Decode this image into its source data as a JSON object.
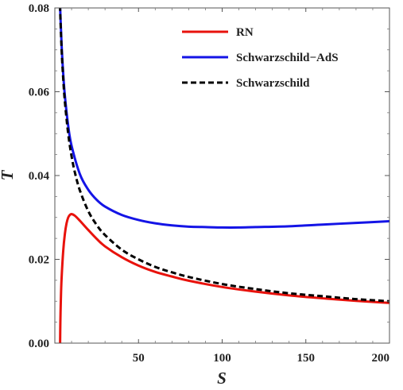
{
  "chart_data": {
    "type": "line",
    "xlabel": "S",
    "ylabel": "T",
    "xlim": [
      0,
      200
    ],
    "ylim": [
      0,
      0.08
    ],
    "x_ticks": [
      50,
      100,
      150,
      200
    ],
    "x_tick_labels": [
      "50",
      "100",
      "150",
      "200"
    ],
    "y_ticks": [
      0,
      0.02,
      0.04,
      0.06,
      0.08
    ],
    "y_tick_labels": [
      "0.00",
      "0.02",
      "0.04",
      "0.06",
      "0.08"
    ],
    "grid": false,
    "legend_position": "top-right",
    "series": [
      {
        "name": "RN",
        "color": "#e8120c",
        "style": "solid",
        "x": [
          3.14,
          3.3,
          3.6,
          4,
          5,
          6,
          7,
          8,
          9,
          10,
          12,
          15,
          20,
          25,
          30,
          40,
          50,
          60,
          70,
          80,
          100,
          120,
          140,
          160,
          180,
          200
        ],
        "y": [
          0.0,
          0.0051,
          0.0105,
          0.0152,
          0.022,
          0.0261,
          0.0286,
          0.03,
          0.0306,
          0.0308,
          0.0304,
          0.0292,
          0.027,
          0.0249,
          0.0231,
          0.0205,
          0.0185,
          0.017,
          0.0159,
          0.0149,
          0.0134,
          0.0123,
          0.0114,
          0.0107,
          0.0101,
          0.0096
        ]
      },
      {
        "name": "Schwarzschild−AdS",
        "color": "#1414e6",
        "style": "solid",
        "x": [
          2.2,
          2.5,
          3,
          4,
          5,
          6,
          8,
          10,
          15,
          20,
          25,
          30,
          40,
          50,
          60,
          70,
          80,
          90,
          100,
          110,
          120,
          140,
          160,
          180,
          200
        ],
        "y": [
          0.0954,
          0.0896,
          0.082,
          0.0715,
          0.0643,
          0.059,
          0.0518,
          0.0471,
          0.0403,
          0.0366,
          0.0342,
          0.0326,
          0.0306,
          0.0294,
          0.0286,
          0.0281,
          0.0278,
          0.0277,
          0.0276,
          0.0276,
          0.0277,
          0.0279,
          0.0283,
          0.0287,
          0.0291
        ]
      },
      {
        "name": "Schwarzschild",
        "color": "#000000",
        "style": "dashed",
        "x": [
          2.2,
          2.5,
          3,
          4,
          5,
          6,
          8,
          10,
          12,
          15,
          20,
          25,
          30,
          40,
          50,
          60,
          70,
          80,
          100,
          120,
          140,
          160,
          180,
          200
        ],
        "y": [
          0.0952,
          0.0892,
          0.0814,
          0.0705,
          0.0631,
          0.0576,
          0.0499,
          0.0446,
          0.0407,
          0.0364,
          0.0315,
          0.0282,
          0.0258,
          0.0223,
          0.02,
          0.0182,
          0.0169,
          0.0158,
          0.0141,
          0.0129,
          0.0119,
          0.0112,
          0.0105,
          0.01
        ]
      }
    ]
  }
}
